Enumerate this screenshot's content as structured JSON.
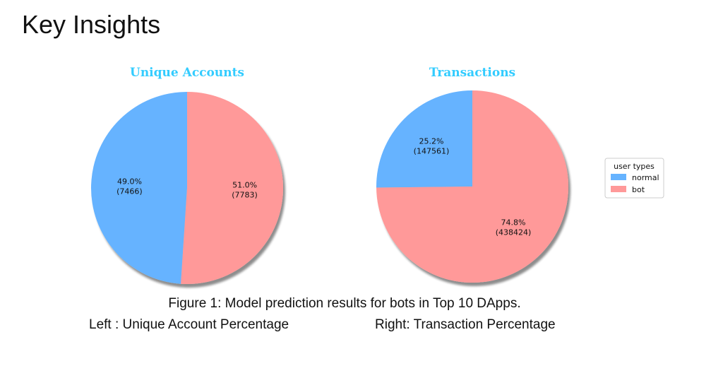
{
  "slide": {
    "title": "Key Insights"
  },
  "caption": {
    "line1": "Figure 1: Model prediction results for bots in Top 10 DApps.",
    "left": "Left : Unique Account Percentage",
    "right": "Right: Transaction Percentage"
  },
  "colors": {
    "normal": "#66b3ff",
    "bot": "#ff9999",
    "chart_title": "#33ccff"
  },
  "chart_data": [
    {
      "type": "pie",
      "title": "Unique Accounts",
      "slices": [
        {
          "name": "normal",
          "value": 7466,
          "percent": 49.0,
          "label": "49.0%",
          "count_label": "(7466)"
        },
        {
          "name": "bot",
          "value": 7783,
          "percent": 51.0,
          "label": "51.0%",
          "count_label": "(7783)"
        }
      ]
    },
    {
      "type": "pie",
      "title": "Transactions",
      "slices": [
        {
          "name": "normal",
          "value": 147561,
          "percent": 25.2,
          "label": "25.2%",
          "count_label": "(147561)"
        },
        {
          "name": "bot",
          "value": 438424,
          "percent": 74.8,
          "label": "74.8%",
          "count_label": "(438424)"
        }
      ]
    }
  ],
  "legend": {
    "title": "user types",
    "placement": "right",
    "items": [
      {
        "name": "normal",
        "label": "normal"
      },
      {
        "name": "bot",
        "label": "bot"
      }
    ]
  }
}
